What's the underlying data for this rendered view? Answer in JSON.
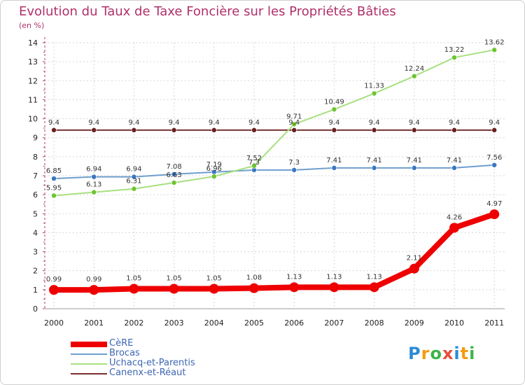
{
  "title": "Evolution du Taux de Taxe Foncière sur les Propriétés Bâties",
  "subtitle": "(en %)",
  "logo": {
    "letters": [
      "P",
      "r",
      "o",
      "x",
      "i",
      "t",
      "i"
    ],
    "colors": [
      "#2b8cd6",
      "#f39c12",
      "#3cb44b",
      "#e74c3c",
      "#2b8cd6",
      "#f39c12",
      "#3cb44b"
    ]
  },
  "chart_data": {
    "type": "line",
    "x": [
      "2000",
      "2001",
      "2002",
      "2003",
      "2004",
      "2005",
      "2006",
      "2007",
      "2008",
      "2009",
      "2010",
      "2011"
    ],
    "ylim": [
      0,
      14
    ],
    "yticks": [
      "0",
      "1",
      "2",
      "3",
      "4",
      "5",
      "6",
      "7",
      "8",
      "9",
      "10",
      "11",
      "12",
      "13",
      "14"
    ],
    "grid": true,
    "series": [
      {
        "name": "CèRE",
        "color": "#ee0000",
        "width": 8,
        "marker": 7,
        "values": [
          0.99,
          0.99,
          1.05,
          1.05,
          1.05,
          1.08,
          1.13,
          1.13,
          1.13,
          2.11,
          4.26,
          4.97
        ],
        "labels": [
          "0.99",
          "0.99",
          "1.05",
          "1.05",
          "1.05",
          "1.08",
          "1.13",
          "1.13",
          "1.13",
          "2.11",
          "4.26",
          "4.97"
        ]
      },
      {
        "name": "Brocas",
        "color": "#6f9fce",
        "width": 2,
        "marker": 3.5,
        "pointColor": "#3a78c0",
        "values": [
          6.85,
          6.94,
          6.94,
          7.08,
          7.19,
          7.3,
          7.3,
          7.41,
          7.41,
          7.41,
          7.41,
          7.56
        ],
        "labels": [
          "6.85",
          "6.94",
          "6.94",
          "7.08",
          "7.19",
          "7.3",
          "7.3",
          "7.41",
          "7.41",
          "7.41",
          "7.41",
          "7.56"
        ]
      },
      {
        "name": "Uchacq-et-Parentis",
        "color": "#a7e07e",
        "width": 2,
        "marker": 3.5,
        "pointColor": "#6cc432",
        "values": [
          5.95,
          6.13,
          6.31,
          6.63,
          6.96,
          7.52,
          9.71,
          10.49,
          11.33,
          12.24,
          13.22,
          13.62
        ],
        "labels": [
          "5.95",
          "6.13",
          "6.31",
          "6.63",
          "6.96",
          "7.52",
          "9.71",
          "10.49",
          "11.33",
          "12.24",
          "13.22",
          "13.62"
        ]
      },
      {
        "name": "Canenx-et-Réaut",
        "color": "#7a3030",
        "width": 2,
        "marker": 3.5,
        "pointColor": "#6a1f1f",
        "values": [
          9.4,
          9.4,
          9.4,
          9.4,
          9.4,
          9.4,
          9.4,
          9.4,
          9.4,
          9.4,
          9.4,
          9.4
        ],
        "labels": [
          "9.4",
          "9.4",
          "9.4",
          "9.4",
          "9.4",
          "9.4",
          "9.4",
          "9.4",
          "9.4",
          "9.4",
          "9.4",
          "9.4"
        ]
      }
    ]
  }
}
